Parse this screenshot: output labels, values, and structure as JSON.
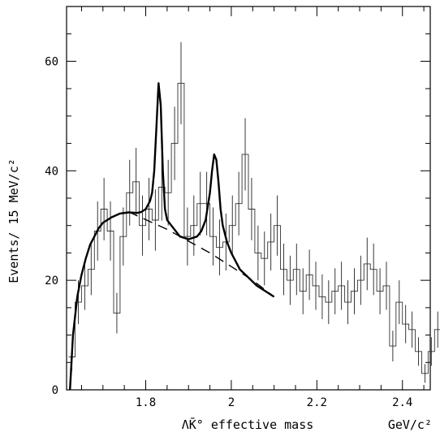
{
  "chart_data": {
    "type": "histogram",
    "title": "",
    "xlabel": "ΛK̄° effective mass",
    "xunit": "GeV/c²",
    "ylabel": "Events/ 15 MeV/c²",
    "xlim": [
      1.615,
      2.465
    ],
    "ylim": [
      0,
      70
    ],
    "x_ticks": [
      1.8,
      2.0,
      2.2,
      2.4
    ],
    "x_tick_labels": [
      "1.8",
      "2",
      "2.2",
      "2.4"
    ],
    "y_ticks": [
      0,
      20,
      40,
      60
    ],
    "y_tick_labels": [
      "0",
      "20",
      "40",
      "60"
    ],
    "grid": false,
    "bin_width": 0.015,
    "bin_start": 1.62,
    "histogram": {
      "name": "Data (histogram with error bars)",
      "values": [
        6,
        16,
        19,
        22,
        29,
        33,
        29,
        14,
        28,
        36,
        38,
        30,
        33,
        31,
        37,
        36,
        45,
        56,
        28,
        30,
        34,
        34,
        28,
        26,
        27,
        30,
        34,
        43,
        33,
        25,
        24,
        27,
        30,
        22,
        20,
        22,
        18,
        21,
        19,
        17,
        16,
        18,
        19,
        16,
        18,
        20,
        23,
        22,
        18,
        19,
        8,
        16,
        12,
        11,
        7,
        3,
        7,
        11,
        11,
        10,
        7,
        4,
        9,
        7,
        5,
        4,
        8,
        8
      ],
      "errors": [
        2.5,
        4,
        4.4,
        4.7,
        5.4,
        5.7,
        5.4,
        3.7,
        5.3,
        6,
        6.2,
        5.5,
        5.7,
        5.6,
        6.1,
        6,
        6.7,
        7.5,
        5.3,
        5.5,
        5.8,
        5.8,
        5.3,
        5.1,
        5.2,
        5.5,
        5.8,
        6.6,
        5.7,
        5,
        4.9,
        5.2,
        5.5,
        4.7,
        4.5,
        4.7,
        4.2,
        4.6,
        4.4,
        4.1,
        4,
        4.2,
        4.4,
        4,
        4.2,
        4.5,
        4.8,
        4.7,
        4.2,
        4.4,
        2.8,
        4,
        3.5,
        3.3,
        2.6,
        1.7,
        2.6,
        3.3,
        3.3,
        3.2,
        2.6,
        2,
        3,
        2.6,
        2.2,
        2,
        2.8,
        2.8
      ]
    },
    "series": [
      {
        "type": "line",
        "style": "solid",
        "x": [
          1.623,
          1.63,
          1.64,
          1.65,
          1.66,
          1.67,
          1.68,
          1.69,
          1.7,
          1.72,
          1.74,
          1.76,
          1.78,
          1.79,
          1.8,
          1.81,
          1.815,
          1.82,
          1.825,
          1.83,
          1.835,
          1.84,
          1.845,
          1.85,
          1.86,
          1.87,
          1.88,
          1.9,
          1.92,
          1.93,
          1.94,
          1.95,
          1.955,
          1.96,
          1.965,
          1.97,
          1.975,
          1.98,
          1.99,
          2.0,
          2.02,
          2.04,
          2.06,
          2.08,
          2.1
        ],
        "y": [
          0,
          10,
          17,
          21,
          24,
          26.5,
          28,
          29.5,
          30.5,
          31.5,
          32.2,
          32.4,
          32.3,
          32.5,
          33,
          34.5,
          36,
          40,
          48,
          56,
          52,
          40,
          33,
          31,
          30,
          29,
          28,
          27.5,
          28,
          29,
          31,
          36,
          40,
          43,
          42,
          38,
          33,
          30,
          27,
          25,
          22,
          20.5,
          19,
          18,
          17
        ]
      },
      {
        "type": "line",
        "style": "dashed",
        "x": [
          1.76,
          1.85,
          1.95,
          2.05,
          2.1
        ],
        "y": [
          32.5,
          29.3,
          25,
          20,
          17
        ]
      }
    ]
  }
}
